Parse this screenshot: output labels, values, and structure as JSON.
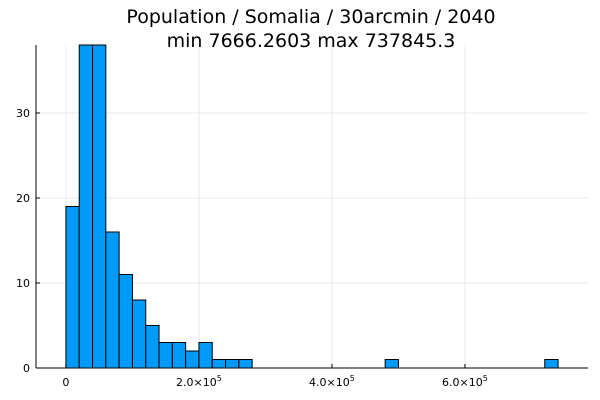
{
  "chart_data": {
    "type": "bar",
    "title_lines": [
      "Population / Somalia / 30arcmin / 2040",
      "min 7666.2603  max 737845.3"
    ],
    "bar_color": "#009af9",
    "bin_width": 20000,
    "bins": [
      {
        "x0": 0,
        "value": 19
      },
      {
        "x0": 20000,
        "value": 38
      },
      {
        "x0": 40000,
        "value": 38
      },
      {
        "x0": 60000,
        "value": 16
      },
      {
        "x0": 80000,
        "value": 11
      },
      {
        "x0": 100000,
        "value": 8
      },
      {
        "x0": 120000,
        "value": 5
      },
      {
        "x0": 140000,
        "value": 3
      },
      {
        "x0": 160000,
        "value": 3
      },
      {
        "x0": 180000,
        "value": 2
      },
      {
        "x0": 200000,
        "value": 3
      },
      {
        "x0": 220000,
        "value": 1
      },
      {
        "x0": 240000,
        "value": 1
      },
      {
        "x0": 260000,
        "value": 1
      },
      {
        "x0": 480000,
        "value": 1
      },
      {
        "x0": 720000,
        "value": 1
      }
    ],
    "xlim": [
      -45000,
      785000
    ],
    "ylim": [
      0,
      38
    ],
    "x_ticks": [
      {
        "value": 0,
        "label": "0"
      },
      {
        "value": 200000,
        "label": "2.0×10",
        "exp": "5"
      },
      {
        "value": 400000,
        "label": "4.0×10",
        "exp": "5"
      },
      {
        "value": 600000,
        "label": "6.0×10",
        "exp": "5"
      }
    ],
    "y_ticks": [
      {
        "value": 0,
        "label": "0"
      },
      {
        "value": 10,
        "label": "10"
      },
      {
        "value": 20,
        "label": "20"
      },
      {
        "value": 30,
        "label": "30"
      }
    ],
    "grid": true,
    "legend": false
  }
}
